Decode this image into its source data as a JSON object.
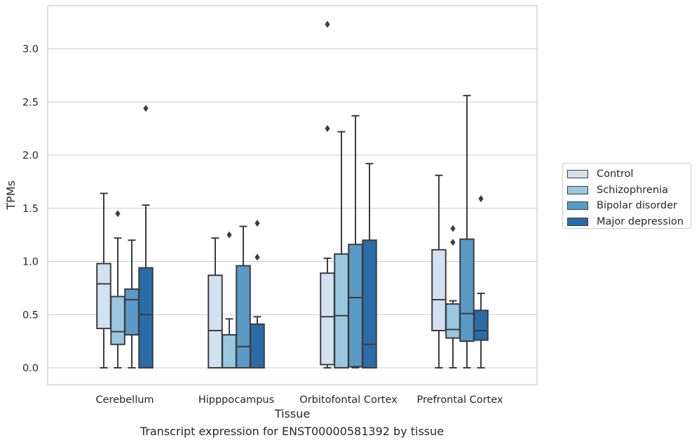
{
  "caption": "Transcript expression for ENST00000581392 by tissue",
  "chart_data": {
    "type": "box",
    "xlabel": "Tissue",
    "ylabel": "TPMs",
    "ylim": [
      -0.15,
      3.4
    ],
    "yticks": [
      "0.0",
      "0.5",
      "1.0",
      "1.5",
      "2.0",
      "2.5",
      "3.0"
    ],
    "grid": "horizontal",
    "legend_position": "right",
    "categories": [
      "Cerebellum",
      "Hipppocampus",
      "Orbitofontal Cortex",
      "Prefrontal Cortex"
    ],
    "series": [
      {
        "name": "Control",
        "color": "#d3e2f0",
        "boxes": [
          {
            "whisker_low": 0.0,
            "q1": 0.37,
            "median": 0.79,
            "q3": 0.98,
            "whisker_high": 1.64,
            "outliers": []
          },
          {
            "whisker_low": 0.0,
            "q1": 0.0,
            "median": 0.35,
            "q3": 0.87,
            "whisker_high": 1.22,
            "outliers": []
          },
          {
            "whisker_low": 0.0,
            "q1": 0.03,
            "median": 0.48,
            "q3": 0.89,
            "whisker_high": 1.03,
            "outliers": [
              2.25,
              3.23
            ]
          },
          {
            "whisker_low": 0.0,
            "q1": 0.35,
            "median": 0.64,
            "q3": 1.11,
            "whisker_high": 1.81,
            "outliers": []
          }
        ]
      },
      {
        "name": "Schizophrenia",
        "color": "#9ac8e0",
        "boxes": [
          {
            "whisker_low": 0.0,
            "q1": 0.22,
            "median": 0.34,
            "q3": 0.67,
            "whisker_high": 1.22,
            "outliers": [
              1.45
            ]
          },
          {
            "whisker_low": 0.0,
            "q1": 0.0,
            "median": 0.31,
            "q3": 0.31,
            "whisker_high": 0.46,
            "outliers": [
              1.25
            ]
          },
          {
            "whisker_low": 0.0,
            "q1": 0.0,
            "median": 0.49,
            "q3": 1.07,
            "whisker_high": 2.22,
            "outliers": []
          },
          {
            "whisker_low": 0.0,
            "q1": 0.28,
            "median": 0.36,
            "q3": 0.6,
            "whisker_high": 0.63,
            "outliers": [
              1.18,
              1.31
            ]
          }
        ]
      },
      {
        "name": "Bipolar disorder",
        "color": "#5a9ac6",
        "boxes": [
          {
            "whisker_low": 0.0,
            "q1": 0.31,
            "median": 0.64,
            "q3": 0.74,
            "whisker_high": 1.2,
            "outliers": []
          },
          {
            "whisker_low": 0.0,
            "q1": 0.0,
            "median": 0.2,
            "q3": 0.96,
            "whisker_high": 1.33,
            "outliers": []
          },
          {
            "whisker_low": 0.0,
            "q1": 0.01,
            "median": 0.66,
            "q3": 1.16,
            "whisker_high": 2.37,
            "outliers": []
          },
          {
            "whisker_low": 0.0,
            "q1": 0.25,
            "median": 0.51,
            "q3": 1.21,
            "whisker_high": 2.56,
            "outliers": []
          }
        ]
      },
      {
        "name": "Major depression",
        "color": "#2a6ca8",
        "boxes": [
          {
            "whisker_low": 0.0,
            "q1": 0.0,
            "median": 0.5,
            "q3": 0.94,
            "whisker_high": 1.53,
            "outliers": [
              2.44
            ]
          },
          {
            "whisker_low": 0.0,
            "q1": 0.0,
            "median": 0.41,
            "q3": 0.41,
            "whisker_high": 0.48,
            "outliers": [
              1.04,
              1.36
            ]
          },
          {
            "whisker_low": 0.0,
            "q1": 0.0,
            "median": 0.22,
            "q3": 1.2,
            "whisker_high": 1.92,
            "outliers": []
          },
          {
            "whisker_low": 0.0,
            "q1": 0.26,
            "median": 0.35,
            "q3": 0.54,
            "whisker_high": 0.7,
            "outliers": [
              1.59
            ]
          }
        ]
      }
    ]
  }
}
